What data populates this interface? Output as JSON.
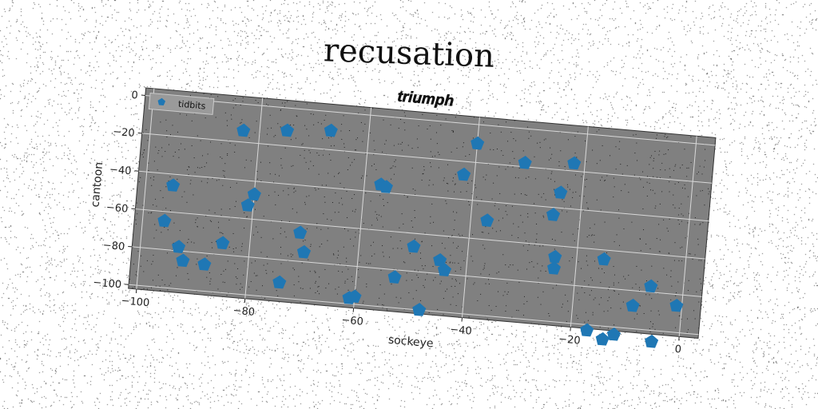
{
  "figure": {
    "main_title": "recusation"
  },
  "chart_data": {
    "type": "scatter",
    "title": "triumph",
    "xlabel": "sockeye",
    "ylabel": "cantoon",
    "xlim": [
      -101.5,
      3.5
    ],
    "ylim": [
      -102,
      4
    ],
    "xticks": [
      -100,
      -80,
      -60,
      -40,
      -20,
      0
    ],
    "yticks": [
      0,
      -20,
      -40,
      -60,
      -80,
      -100
    ],
    "grid": true,
    "legend": "top-left",
    "marker": "pentagon",
    "colors": {
      "series": "#1f77b4",
      "plot_bg": "#808080",
      "grid": "#d8d8d8"
    },
    "series": [
      {
        "name": "tidbits",
        "points": [
          [
            -83,
            -14
          ],
          [
            -75,
            -12
          ],
          [
            -67,
            -10
          ],
          [
            -40,
            -10
          ],
          [
            -31,
            -18
          ],
          [
            -22,
            -16
          ],
          [
            -42,
            -27
          ],
          [
            -24,
            -32
          ],
          [
            -57,
            -36
          ],
          [
            -56,
            -37
          ],
          [
            -25,
            -44
          ],
          [
            -95,
            -46
          ],
          [
            -80,
            -47
          ],
          [
            -81,
            -53
          ],
          [
            -37,
            -50
          ],
          [
            -96,
            -65
          ],
          [
            -71,
            -65
          ],
          [
            -50,
            -67
          ],
          [
            -24,
            -66
          ],
          [
            -15,
            -65
          ],
          [
            -85,
            -74
          ],
          [
            -70,
            -75
          ],
          [
            -45,
            -73
          ],
          [
            -24,
            -72
          ],
          [
            -93,
            -78
          ],
          [
            -44,
            -78
          ],
          [
            -6,
            -77
          ],
          [
            -92,
            -85
          ],
          [
            -88,
            -86
          ],
          [
            -53,
            -84
          ],
          [
            -9,
            -88
          ],
          [
            -1,
            -86
          ],
          [
            -74,
            -92
          ],
          [
            -60,
            -96
          ],
          [
            -61,
            -97
          ],
          [
            -48,
            -100
          ],
          [
            -17,
            -103
          ],
          [
            -12,
            -104
          ],
          [
            -14,
            -107
          ],
          [
            -5,
            -106
          ]
        ]
      }
    ]
  }
}
